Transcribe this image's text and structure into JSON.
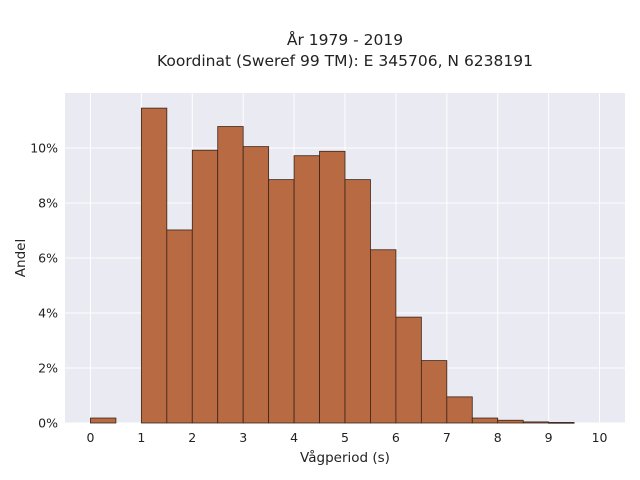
{
  "chart_data": {
    "type": "bar",
    "title_line1": "År 1979 - 2019",
    "title_line2": "Koordinat (Sweref 99 TM): E 345706, N 6238191",
    "xlabel": "Vågperiod (s)",
    "ylabel": "Andel",
    "xlim": [
      -0.5,
      10.5
    ],
    "ylim": [
      0,
      12
    ],
    "bin_width": 0.5,
    "x_ticks": [
      "0",
      "1",
      "2",
      "3",
      "4",
      "5",
      "6",
      "7",
      "8",
      "9",
      "10"
    ],
    "y_ticks": [
      "0%",
      "2%",
      "4%",
      "6%",
      "8%",
      "10%"
    ],
    "bins": [
      {
        "x": 0.0,
        "value": 0.18
      },
      {
        "x": 0.5,
        "value": 0.0
      },
      {
        "x": 1.0,
        "value": 11.45
      },
      {
        "x": 1.5,
        "value": 7.02
      },
      {
        "x": 2.0,
        "value": 9.92
      },
      {
        "x": 2.5,
        "value": 10.78
      },
      {
        "x": 3.0,
        "value": 10.05
      },
      {
        "x": 3.5,
        "value": 8.85
      },
      {
        "x": 4.0,
        "value": 9.72
      },
      {
        "x": 4.5,
        "value": 9.88
      },
      {
        "x": 5.0,
        "value": 8.85
      },
      {
        "x": 5.5,
        "value": 6.3
      },
      {
        "x": 6.0,
        "value": 3.85
      },
      {
        "x": 6.5,
        "value": 2.27
      },
      {
        "x": 7.0,
        "value": 0.95
      },
      {
        "x": 7.5,
        "value": 0.18
      },
      {
        "x": 8.0,
        "value": 0.1
      },
      {
        "x": 8.5,
        "value": 0.04
      },
      {
        "x": 9.0,
        "value": 0.02
      }
    ],
    "grid": true,
    "colors": {
      "bar_fill": "#b86a42",
      "bar_edge": "#3a2418",
      "plot_bg": "#eaeaf2",
      "grid": "#ffffff"
    }
  }
}
